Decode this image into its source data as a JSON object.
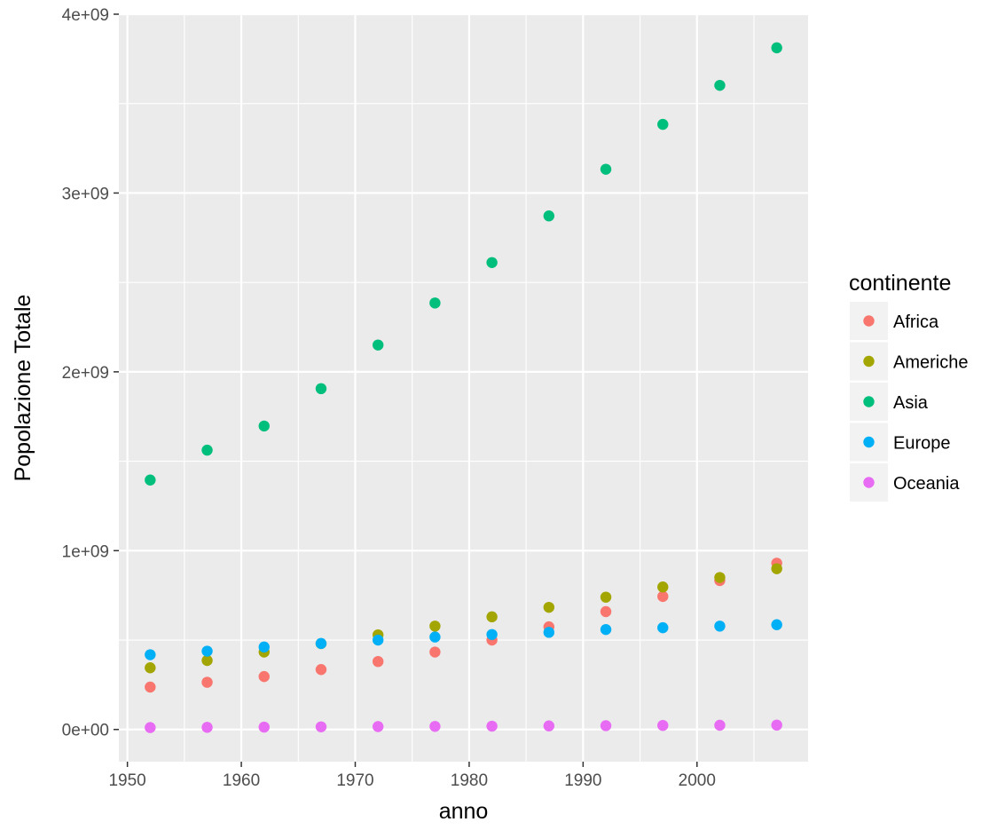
{
  "chart_data": {
    "type": "scatter",
    "title": "",
    "xlabel": "anno",
    "ylabel": "Popolazione Totale",
    "xlim": [
      1949.25,
      2009.75
    ],
    "ylim": [
      -180000000,
      4000000000
    ],
    "x_ticks": [
      1950,
      1960,
      1970,
      1980,
      1990,
      2000
    ],
    "x_tick_labels": [
      "1950",
      "1960",
      "1970",
      "1980",
      "1990",
      "2000"
    ],
    "y_ticks": [
      0,
      1000000000,
      2000000000,
      3000000000,
      4000000000
    ],
    "y_tick_labels": [
      "0e+00",
      "1e+09",
      "2e+09",
      "3e+09",
      "4e+09"
    ],
    "grid": true,
    "legend": {
      "title": "continente",
      "position": "right"
    },
    "x": [
      1952,
      1957,
      1962,
      1967,
      1972,
      1977,
      1982,
      1987,
      1992,
      1997,
      2002,
      2007
    ],
    "series": [
      {
        "name": "Africa",
        "color": "#F8766D",
        "values": [
          237000000,
          264000000,
          296000000,
          335000000,
          380000000,
          433000000,
          500000000,
          574000000,
          659000000,
          744000000,
          833000000,
          930000000
        ]
      },
      {
        "name": "Americhe",
        "color": "#A3A500",
        "values": [
          345000000,
          386000000,
          433000000,
          480000000,
          529000000,
          578000000,
          630000000,
          683000000,
          740000000,
          797000000,
          850000000,
          899000000
        ]
      },
      {
        "name": "Asia",
        "color": "#00BF7D",
        "values": [
          1395000000,
          1562000000,
          1697000000,
          1906000000,
          2150000000,
          2385000000,
          2611000000,
          2872000000,
          3133000000,
          3384000000,
          3602000000,
          3812000000
        ]
      },
      {
        "name": "Europe",
        "color": "#00B0F6",
        "values": [
          418000000,
          438000000,
          461000000,
          481000000,
          500000000,
          517000000,
          531000000,
          543000000,
          559000000,
          569000000,
          578000000,
          586000000
        ]
      },
      {
        "name": "Oceania",
        "color": "#E76BF3",
        "values": [
          10700000,
          11900000,
          13300000,
          14600000,
          16100000,
          17200000,
          18400000,
          19800000,
          21200000,
          22600000,
          23500000,
          24500000
        ]
      }
    ]
  }
}
